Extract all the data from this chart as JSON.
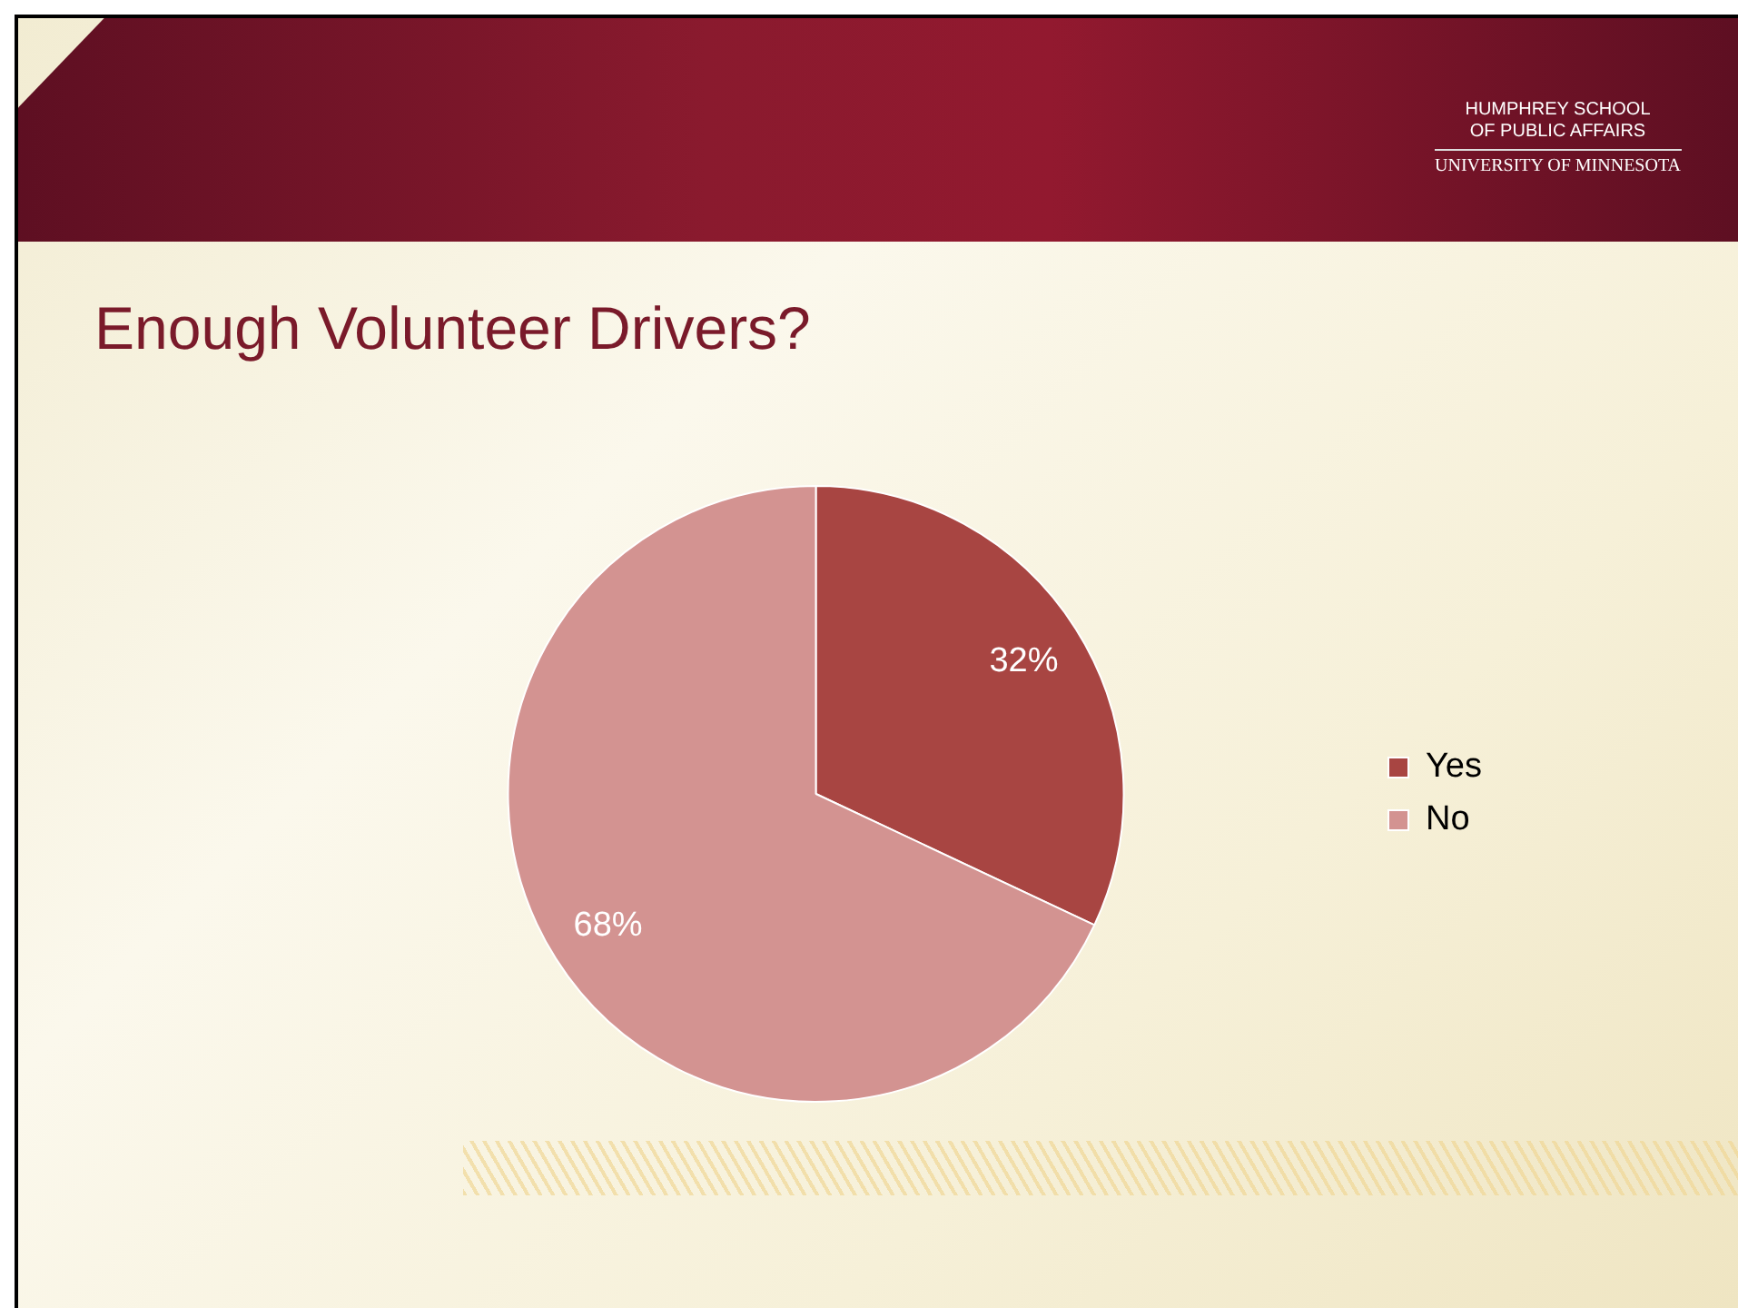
{
  "chart_data": {
    "type": "pie",
    "title": "Enough Volunteer Drivers?",
    "categories": [
      "Yes",
      "No"
    ],
    "values": [
      32,
      68
    ],
    "colors": [
      "#a84542",
      "#d39391"
    ],
    "value_labels": [
      "32%",
      "68%"
    ],
    "legend": "right",
    "annotations": [
      "HUMPHREY SCHOOL",
      "OF PUBLIC AFFAIRS",
      "UNIVERSITY OF MINNESOTA"
    ]
  }
}
